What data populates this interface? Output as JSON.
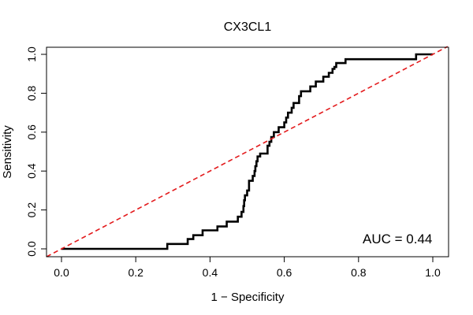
{
  "chart_data": {
    "type": "line",
    "title": "CX3CL1",
    "xlabel": "1 − Specificity",
    "ylabel": "Sensitivity",
    "xlim": [
      0,
      1
    ],
    "ylim": [
      0,
      1
    ],
    "x_ticks": [
      "0.0",
      "0.2",
      "0.4",
      "0.6",
      "0.8",
      "1.0"
    ],
    "y_ticks": [
      "0.0",
      "0.2",
      "0.4",
      "0.6",
      "0.8",
      "1.0"
    ],
    "annotation": "AUC = 0.44",
    "grid": false,
    "series": [
      {
        "name": "ROC curve",
        "color": "#000000",
        "style": "step",
        "points": [
          [
            0.0,
            0.0
          ],
          [
            0.285,
            0.0
          ],
          [
            0.285,
            0.025
          ],
          [
            0.34,
            0.025
          ],
          [
            0.34,
            0.05
          ],
          [
            0.355,
            0.05
          ],
          [
            0.355,
            0.07
          ],
          [
            0.38,
            0.07
          ],
          [
            0.38,
            0.095
          ],
          [
            0.42,
            0.095
          ],
          [
            0.42,
            0.115
          ],
          [
            0.445,
            0.115
          ],
          [
            0.445,
            0.14
          ],
          [
            0.475,
            0.14
          ],
          [
            0.475,
            0.165
          ],
          [
            0.485,
            0.165
          ],
          [
            0.485,
            0.19
          ],
          [
            0.49,
            0.19
          ],
          [
            0.49,
            0.22
          ],
          [
            0.492,
            0.22
          ],
          [
            0.492,
            0.25
          ],
          [
            0.494,
            0.25
          ],
          [
            0.494,
            0.275
          ],
          [
            0.5,
            0.275
          ],
          [
            0.5,
            0.3
          ],
          [
            0.505,
            0.3
          ],
          [
            0.505,
            0.35
          ],
          [
            0.515,
            0.35
          ],
          [
            0.515,
            0.375
          ],
          [
            0.52,
            0.375
          ],
          [
            0.52,
            0.4
          ],
          [
            0.522,
            0.4
          ],
          [
            0.522,
            0.425
          ],
          [
            0.525,
            0.425
          ],
          [
            0.525,
            0.45
          ],
          [
            0.528,
            0.45
          ],
          [
            0.528,
            0.475
          ],
          [
            0.535,
            0.475
          ],
          [
            0.535,
            0.49
          ],
          [
            0.555,
            0.49
          ],
          [
            0.555,
            0.53
          ],
          [
            0.56,
            0.53
          ],
          [
            0.56,
            0.55
          ],
          [
            0.565,
            0.55
          ],
          [
            0.565,
            0.575
          ],
          [
            0.572,
            0.575
          ],
          [
            0.572,
            0.6
          ],
          [
            0.585,
            0.6
          ],
          [
            0.585,
            0.625
          ],
          [
            0.6,
            0.625
          ],
          [
            0.6,
            0.65
          ],
          [
            0.605,
            0.65
          ],
          [
            0.605,
            0.675
          ],
          [
            0.61,
            0.675
          ],
          [
            0.61,
            0.7
          ],
          [
            0.62,
            0.7
          ],
          [
            0.62,
            0.725
          ],
          [
            0.625,
            0.725
          ],
          [
            0.625,
            0.75
          ],
          [
            0.64,
            0.75
          ],
          [
            0.64,
            0.785
          ],
          [
            0.645,
            0.785
          ],
          [
            0.645,
            0.81
          ],
          [
            0.67,
            0.81
          ],
          [
            0.67,
            0.835
          ],
          [
            0.685,
            0.835
          ],
          [
            0.685,
            0.86
          ],
          [
            0.705,
            0.86
          ],
          [
            0.705,
            0.885
          ],
          [
            0.72,
            0.885
          ],
          [
            0.72,
            0.905
          ],
          [
            0.73,
            0.905
          ],
          [
            0.73,
            0.925
          ],
          [
            0.735,
            0.925
          ],
          [
            0.735,
            0.935
          ],
          [
            0.74,
            0.935
          ],
          [
            0.74,
            0.955
          ],
          [
            0.765,
            0.955
          ],
          [
            0.765,
            0.975
          ],
          [
            0.955,
            0.975
          ],
          [
            0.955,
            1.0
          ],
          [
            1.0,
            1.0
          ]
        ]
      },
      {
        "name": "reference",
        "color": "#e31a1c",
        "style": "dashed",
        "points": [
          [
            -0.04,
            -0.04
          ],
          [
            1.04,
            1.04
          ]
        ]
      }
    ]
  }
}
